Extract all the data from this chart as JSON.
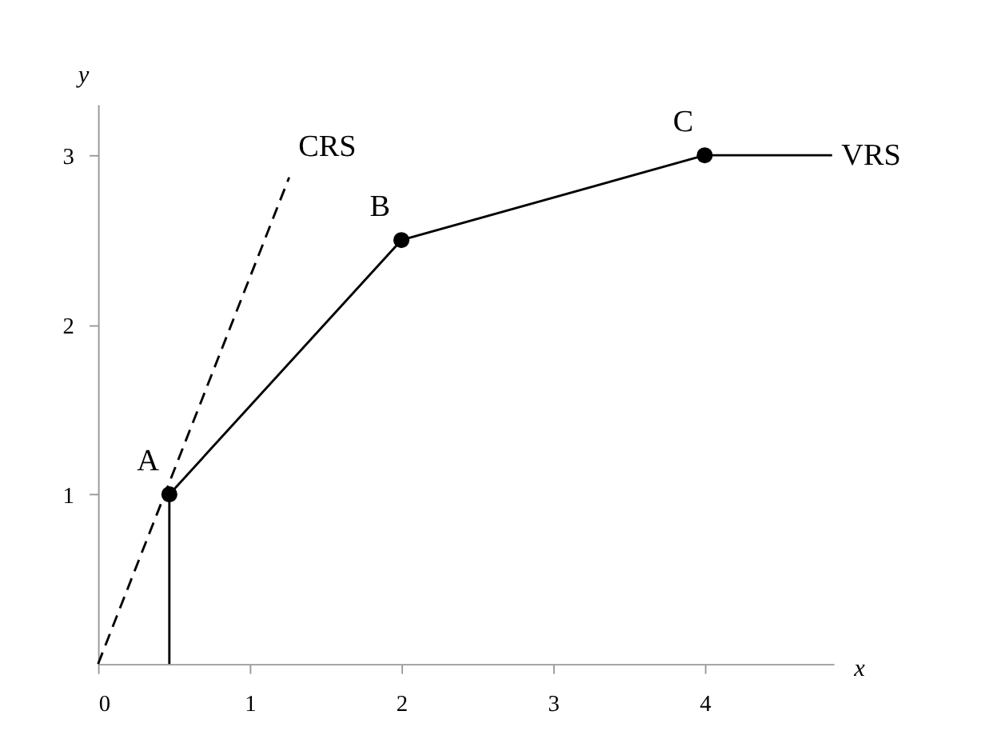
{
  "chart_data": {
    "type": "line",
    "xlabel": "x",
    "ylabel": "y",
    "series": [
      {
        "name": "CRS",
        "color": "#000000",
        "line_style": "dashed",
        "marker": "none",
        "x": [
          0,
          1.26
        ],
        "values": [
          0,
          2.87
        ]
      },
      {
        "name": "VRS",
        "color": "#000000",
        "line_style": "solid",
        "marker": "none",
        "x": [
          0.47,
          2,
          4,
          4.84
        ],
        "values": [
          1,
          2.5,
          3,
          3
        ]
      },
      {
        "color": "#000000",
        "line_style": "solid",
        "marker": "none",
        "x": [
          0.47,
          0.47
        ],
        "values": [
          0,
          1
        ]
      },
      {
        "type": "scatter",
        "color": "#000000",
        "marker": "circle",
        "x": [
          0.47,
          2,
          4
        ],
        "values": [
          1,
          2.5,
          3
        ]
      }
    ],
    "annotations": [
      {
        "text": "A",
        "x": 0.47,
        "y": 1
      },
      {
        "text": "B",
        "x": 2,
        "y": 2.5
      },
      {
        "text": "C",
        "x": 4,
        "y": 3
      }
    ],
    "xlim": [
      0,
      4.85
    ],
    "ylim": [
      0,
      3.3
    ],
    "xticks": [
      0,
      1,
      2,
      3,
      4
    ],
    "yticks": [
      1,
      2,
      3
    ],
    "grid": false
  }
}
